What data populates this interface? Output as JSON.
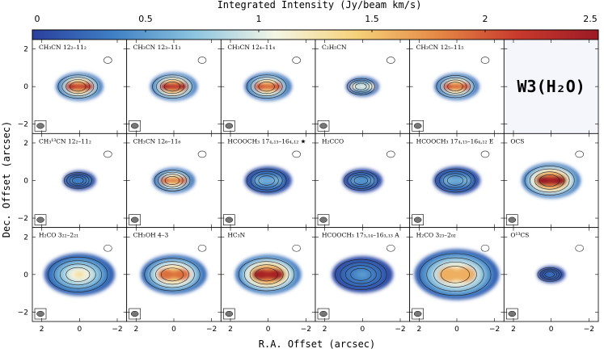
{
  "chart_data": {
    "type": "heatmap",
    "source_label": "W3(H₂O)",
    "colorbar": {
      "title": "Integrated Intensity (Jy/beam km/s)",
      "range": [
        0,
        2.5
      ],
      "ticks": [
        0,
        0.5,
        1,
        1.5,
        2,
        2.5
      ],
      "tick_labels": [
        "0",
        "0.5",
        "1",
        "1.5",
        "2",
        "2.5"
      ],
      "colormap": [
        "#2a3f9e",
        "#3f7fc4",
        "#8cc4e0",
        "#f4f6e6",
        "#f6d27a",
        "#e58a46",
        "#c83a2c",
        "#9c1a26"
      ]
    },
    "xlabel": "R.A. Offset (arcsec)",
    "ylabel": "Dec. Offset (arcsec)",
    "xlim": [
      2.5,
      -2.5
    ],
    "ylim": [
      -2.5,
      2.5
    ],
    "x_ticks": [
      2,
      0,
      -2
    ],
    "x_tick_labels": [
      "2",
      "0",
      "−2"
    ],
    "y_ticks": [
      2,
      0,
      -2
    ],
    "y_tick_labels": [
      "2",
      "0",
      "−2"
    ],
    "panels": [
      {
        "label": "CH₃CN 12₂–11₂",
        "peak": 2.2,
        "spread": 1.0,
        "blobs": 2
      },
      {
        "label": "CH₃CN 12₃–11₃",
        "peak": 2.3,
        "spread": 1.0,
        "blobs": 2
      },
      {
        "label": "CH₃CN 12₄–11₄",
        "peak": 2.0,
        "spread": 1.0,
        "blobs": 2
      },
      {
        "label": "C₂H₅CN",
        "peak": 1.1,
        "spread": 0.7,
        "blobs": 2
      },
      {
        "label": "CH₃CN 12₅–11₅",
        "peak": 2.0,
        "spread": 0.95,
        "blobs": 2
      },
      {
        "label": "",
        "peak": 0,
        "spread": 0,
        "blobs": 0
      },
      {
        "label": "CH₃¹³CN 12₂–11₂",
        "peak": 0.4,
        "spread": 0.7,
        "blobs": 2
      },
      {
        "label": "CH₃CN 12₆–11₆",
        "peak": 1.9,
        "spread": 0.9,
        "blobs": 2
      },
      {
        "label": "HCOOCH₃ 17₄,₁₃–16₄,₁₂ ★",
        "peak": 0.6,
        "spread": 1.0,
        "blobs": 2
      },
      {
        "label": "H₂CCO",
        "peak": 0.5,
        "spread": 0.85,
        "blobs": 2
      },
      {
        "label": "HCOOCH₃ 17₄,₁₃–16₄,₁₂ E",
        "peak": 0.6,
        "spread": 1.0,
        "blobs": 2
      },
      {
        "label": "OCS",
        "peak": 2.5,
        "spread": 1.25,
        "blobs": 2
      },
      {
        "label": "H₂CO 3₂₂–2₂₁",
        "peak": 1.3,
        "spread": 1.5,
        "blobs": 1
      },
      {
        "label": "CH₃OH 4–3",
        "peak": 1.9,
        "spread": 1.4,
        "blobs": 2
      },
      {
        "label": "HC₃N",
        "peak": 2.4,
        "spread": 1.4,
        "blobs": 2
      },
      {
        "label": "HCOOCH₃ 17₃,₁₄–16₃,₁₃ A",
        "peak": 0.5,
        "spread": 1.3,
        "blobs": 1
      },
      {
        "label": "H₂CO 3₂₃–2₀₂",
        "peak": 1.6,
        "spread": 1.8,
        "blobs": 2
      },
      {
        "label": "O¹³CS",
        "peak": 0.3,
        "spread": 0.6,
        "blobs": 1
      }
    ]
  }
}
